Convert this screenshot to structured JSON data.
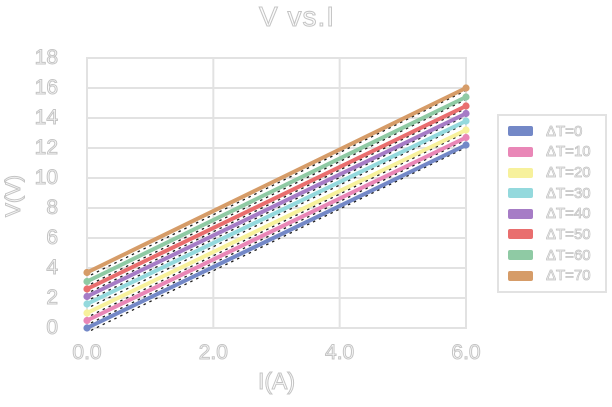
{
  "colors": {
    "background": "#ffffff",
    "grid": "#e2e2e2",
    "legend_border": "#e2e2e2",
    "text_outline": "#c4c4c4",
    "trendline": "#1a1a1a"
  },
  "chart_data": {
    "type": "line",
    "title": "V vs.I",
    "xlabel": "I(A)",
    "ylabel": "V(V)",
    "xlim": [
      0,
      6
    ],
    "ylim": [
      0,
      18
    ],
    "x": [
      0,
      6
    ],
    "x_ticks": [
      0,
      2,
      4,
      6
    ],
    "x_tick_labels": [
      "0.0",
      "2.0",
      "4.0",
      "6.0"
    ],
    "y_ticks": [
      0,
      2,
      4,
      6,
      8,
      10,
      12,
      14,
      16,
      18
    ],
    "y_tick_labels": [
      "0",
      "2",
      "4",
      "6",
      "8",
      "10",
      "12",
      "14",
      "16",
      "18"
    ],
    "grid": true,
    "legend_position": "right",
    "markers": "circle markers at line endpoints",
    "trendline_style": "black dashed trendline drawn along each series",
    "series": [
      {
        "name": "ΔT=0",
        "color": "#7388c7",
        "values": [
          0.0,
          12.2
        ]
      },
      {
        "name": "ΔT=10",
        "color": "#e987b7",
        "values": [
          0.5,
          12.7
        ]
      },
      {
        "name": "ΔT=20",
        "color": "#f7f19c",
        "values": [
          1.0,
          13.2
        ]
      },
      {
        "name": "ΔT=30",
        "color": "#94d9dd",
        "values": [
          1.6,
          13.8
        ]
      },
      {
        "name": "ΔT=40",
        "color": "#a67cc6",
        "values": [
          2.1,
          14.3
        ]
      },
      {
        "name": "ΔT=50",
        "color": "#e96e6e",
        "values": [
          2.6,
          14.8
        ]
      },
      {
        "name": "ΔT=60",
        "color": "#8fcaa4",
        "values": [
          3.1,
          15.4
        ]
      },
      {
        "name": "ΔT=70",
        "color": "#d69c68",
        "values": [
          3.7,
          16.0
        ]
      }
    ]
  }
}
